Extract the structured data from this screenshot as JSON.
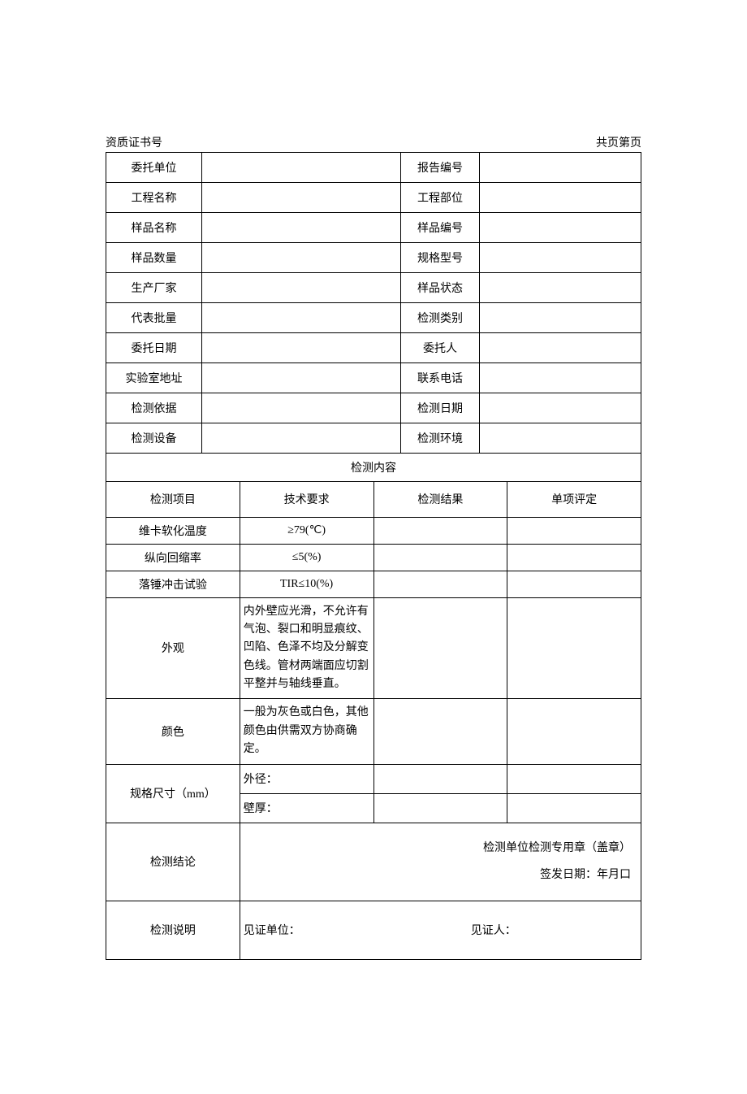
{
  "header": {
    "cert_label": "资质证书号",
    "page_label": "共页第页"
  },
  "info": {
    "rows": [
      {
        "l1": "委托单位",
        "v1": "",
        "l2": "报告编号",
        "v2": ""
      },
      {
        "l1": "工程名称",
        "v1": "",
        "l2": "工程部位",
        "v2": ""
      },
      {
        "l1": "样品名称",
        "v1": "",
        "l2": "样品编号",
        "v2": ""
      },
      {
        "l1": "样品数量",
        "v1": "",
        "l2": "规格型号",
        "v2": ""
      },
      {
        "l1": "生产厂家",
        "v1": "",
        "l2": "样品状态",
        "v2": ""
      },
      {
        "l1": "代表批量",
        "v1": "",
        "l2": "检测类别",
        "v2": ""
      },
      {
        "l1": "委托日期",
        "v1": "",
        "l2": "委托人",
        "v2": ""
      },
      {
        "l1": "实验室地址",
        "v1": "",
        "l2": "联系电话",
        "v2": ""
      },
      {
        "l1": "检测依据",
        "v1": "",
        "l2": "检测日期",
        "v2": ""
      },
      {
        "l1": "检测设备",
        "v1": "",
        "l2": "检测环境",
        "v2": ""
      }
    ]
  },
  "section_title": "检测内容",
  "test_headers": {
    "item": "检测项目",
    "requirement": "技术要求",
    "result": "检测结果",
    "evaluation": "单项评定"
  },
  "tests": [
    {
      "item": "维卡软化温度",
      "req": "≥79(℃)",
      "req_align": "center",
      "result": "",
      "eval": ""
    },
    {
      "item": "纵向回缩率",
      "req": "≤5(%)",
      "req_align": "center",
      "result": "",
      "eval": ""
    },
    {
      "item": "落锤冲击试验",
      "req": "TIR≤10(%)",
      "req_align": "center",
      "result": "",
      "eval": ""
    },
    {
      "item": "外观",
      "req": "内外壁应光滑，不允许有气泡、裂口和明显痕纹、凹陷、色泽不均及分解变色线。管材两端面应切割平整并与轴线垂直。",
      "req_align": "left",
      "result": "",
      "eval": ""
    },
    {
      "item": "颜色",
      "req": "一般为灰色或白色，其他颜色由供需双方协商确定。",
      "req_align": "left",
      "result": "",
      "eval": ""
    }
  ],
  "spec": {
    "label": "规格尺寸（mm）",
    "rows": [
      {
        "req": "外径：",
        "result": "",
        "eval": ""
      },
      {
        "req": "壁厚：",
        "result": "",
        "eval": ""
      }
    ]
  },
  "conclusion": {
    "label": "检测结论",
    "stamp": "检测单位检测专用章（盖章）",
    "date": "签发日期：年月口"
  },
  "notes": {
    "label": "检测说明",
    "witness_unit": "见证单位：",
    "witness_person": "见证人："
  }
}
